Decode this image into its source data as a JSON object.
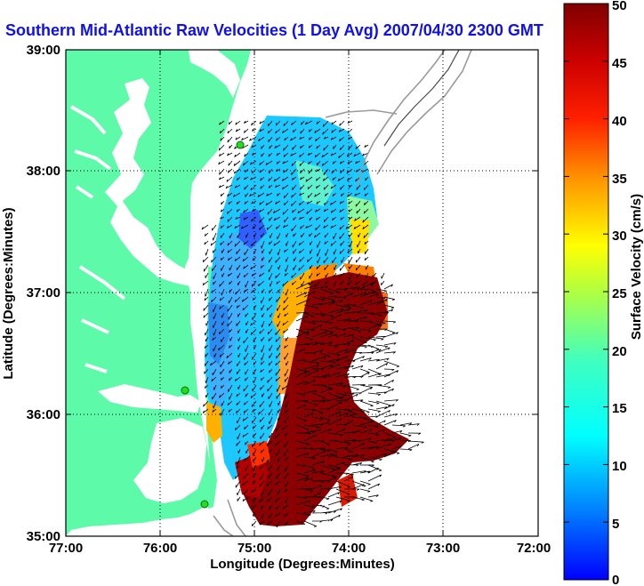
{
  "title": "Southern Mid-Atlantic Raw Velocities (1 Day Avg) 2007/04/30 2300 GMT",
  "map": {
    "xlabel": "Longitude (Degrees:Minutes)",
    "ylabel": "Latitude (Degrees:Minutes)",
    "xticks": [
      "77:00",
      "76:00",
      "75:00",
      "74:00",
      "73:00",
      "72:00"
    ],
    "yticks": [
      "39:00",
      "38:00",
      "37:00",
      "36:00",
      "35:00"
    ],
    "grid": "dotted"
  },
  "colorbar": {
    "label": "Surface Velocity (cm/s)",
    "ticks": [
      "50",
      "45",
      "40",
      "35",
      "30",
      "25",
      "20",
      "15",
      "10",
      "5",
      "0"
    ],
    "min": 0,
    "max": 50
  },
  "colors": {
    "land": "#5dfaaa",
    "title": "#1010e8",
    "station": "#22dd22"
  }
}
